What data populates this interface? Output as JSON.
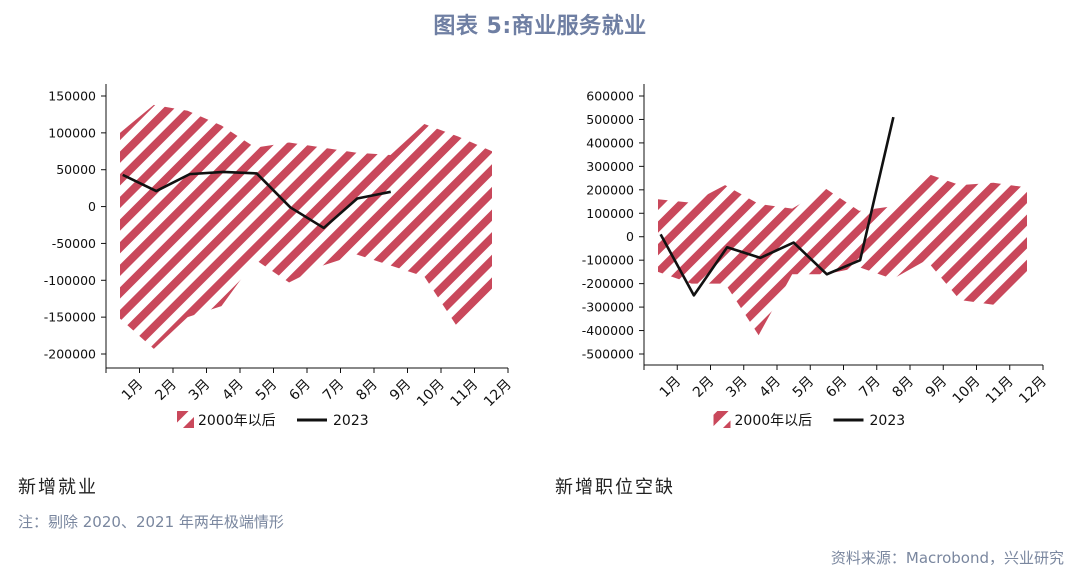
{
  "title": "图表 5:商业服务就业",
  "note": "注：剔除 2020、2021 年两年极端情形",
  "source": "资料来源：Macrobond，兴业研究",
  "colors": {
    "band": "#c9485b",
    "line": "#111111",
    "title": "#6f7fa3"
  },
  "chart_data": [
    {
      "type": "area",
      "caption": "新增就业",
      "categories": [
        "1月",
        "2月",
        "3月",
        "4月",
        "5月",
        "6月",
        "7月",
        "8月",
        "9月",
        "10月",
        "11月",
        "12月"
      ],
      "ylim": [
        -200000,
        150000
      ],
      "yticks": [
        150000,
        100000,
        50000,
        0,
        -50000,
        -100000,
        -150000,
        -200000
      ],
      "series": [
        {
          "name": "2000年以后",
          "kind": "band",
          "upper": [
            100000,
            138000,
            130000,
            110000,
            80000,
            87000,
            80000,
            73000,
            70000,
            112000,
            95000,
            75000
          ],
          "lower": [
            -152000,
            -193000,
            -150000,
            -135000,
            -72000,
            -103000,
            -80000,
            -65000,
            -80000,
            -95000,
            -165000,
            -125000
          ]
        },
        {
          "name": "2023",
          "kind": "line",
          "values": [
            43000,
            21000,
            44000,
            47000,
            45000,
            -1000,
            -29000,
            11000,
            20000,
            null,
            null,
            null
          ]
        }
      ]
    },
    {
      "type": "area",
      "caption": "新增职位空缺",
      "categories": [
        "1月",
        "2月",
        "3月",
        "4月",
        "5月",
        "6月",
        "7月",
        "8月",
        "9月",
        "10月",
        "11月",
        "12月"
      ],
      "ylim": [
        -500000,
        600000
      ],
      "yticks": [
        600000,
        500000,
        400000,
        300000,
        200000,
        100000,
        0,
        -100000,
        -200000,
        -300000,
        -400000,
        -500000
      ],
      "series": [
        {
          "name": "2000年以后",
          "kind": "band",
          "upper": [
            160000,
            145000,
            220000,
            140000,
            120000,
            205000,
            110000,
            130000,
            270000,
            220000,
            230000,
            210000
          ],
          "lower": [
            -150000,
            -200000,
            -200000,
            -420000,
            -160000,
            -160000,
            -130000,
            -180000,
            -100000,
            -270000,
            -290000,
            -170000
          ]
        },
        {
          "name": "2023",
          "kind": "line",
          "values": [
            10000,
            -250000,
            -45000,
            -90000,
            -25000,
            -160000,
            -100000,
            510000,
            null,
            null,
            null,
            null
          ]
        }
      ]
    }
  ]
}
